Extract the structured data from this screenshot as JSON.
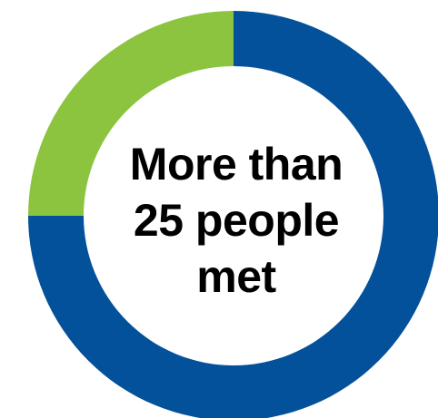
{
  "chart_data": {
    "type": "pie",
    "variant": "donut",
    "title": "",
    "values": [
      75,
      25
    ],
    "colors": [
      "#03519a",
      "#8cc43f"
    ],
    "start_angle_deg": 0,
    "direction": "clockwise",
    "center_text": [
      "More than",
      "25 people",
      "met"
    ]
  }
}
